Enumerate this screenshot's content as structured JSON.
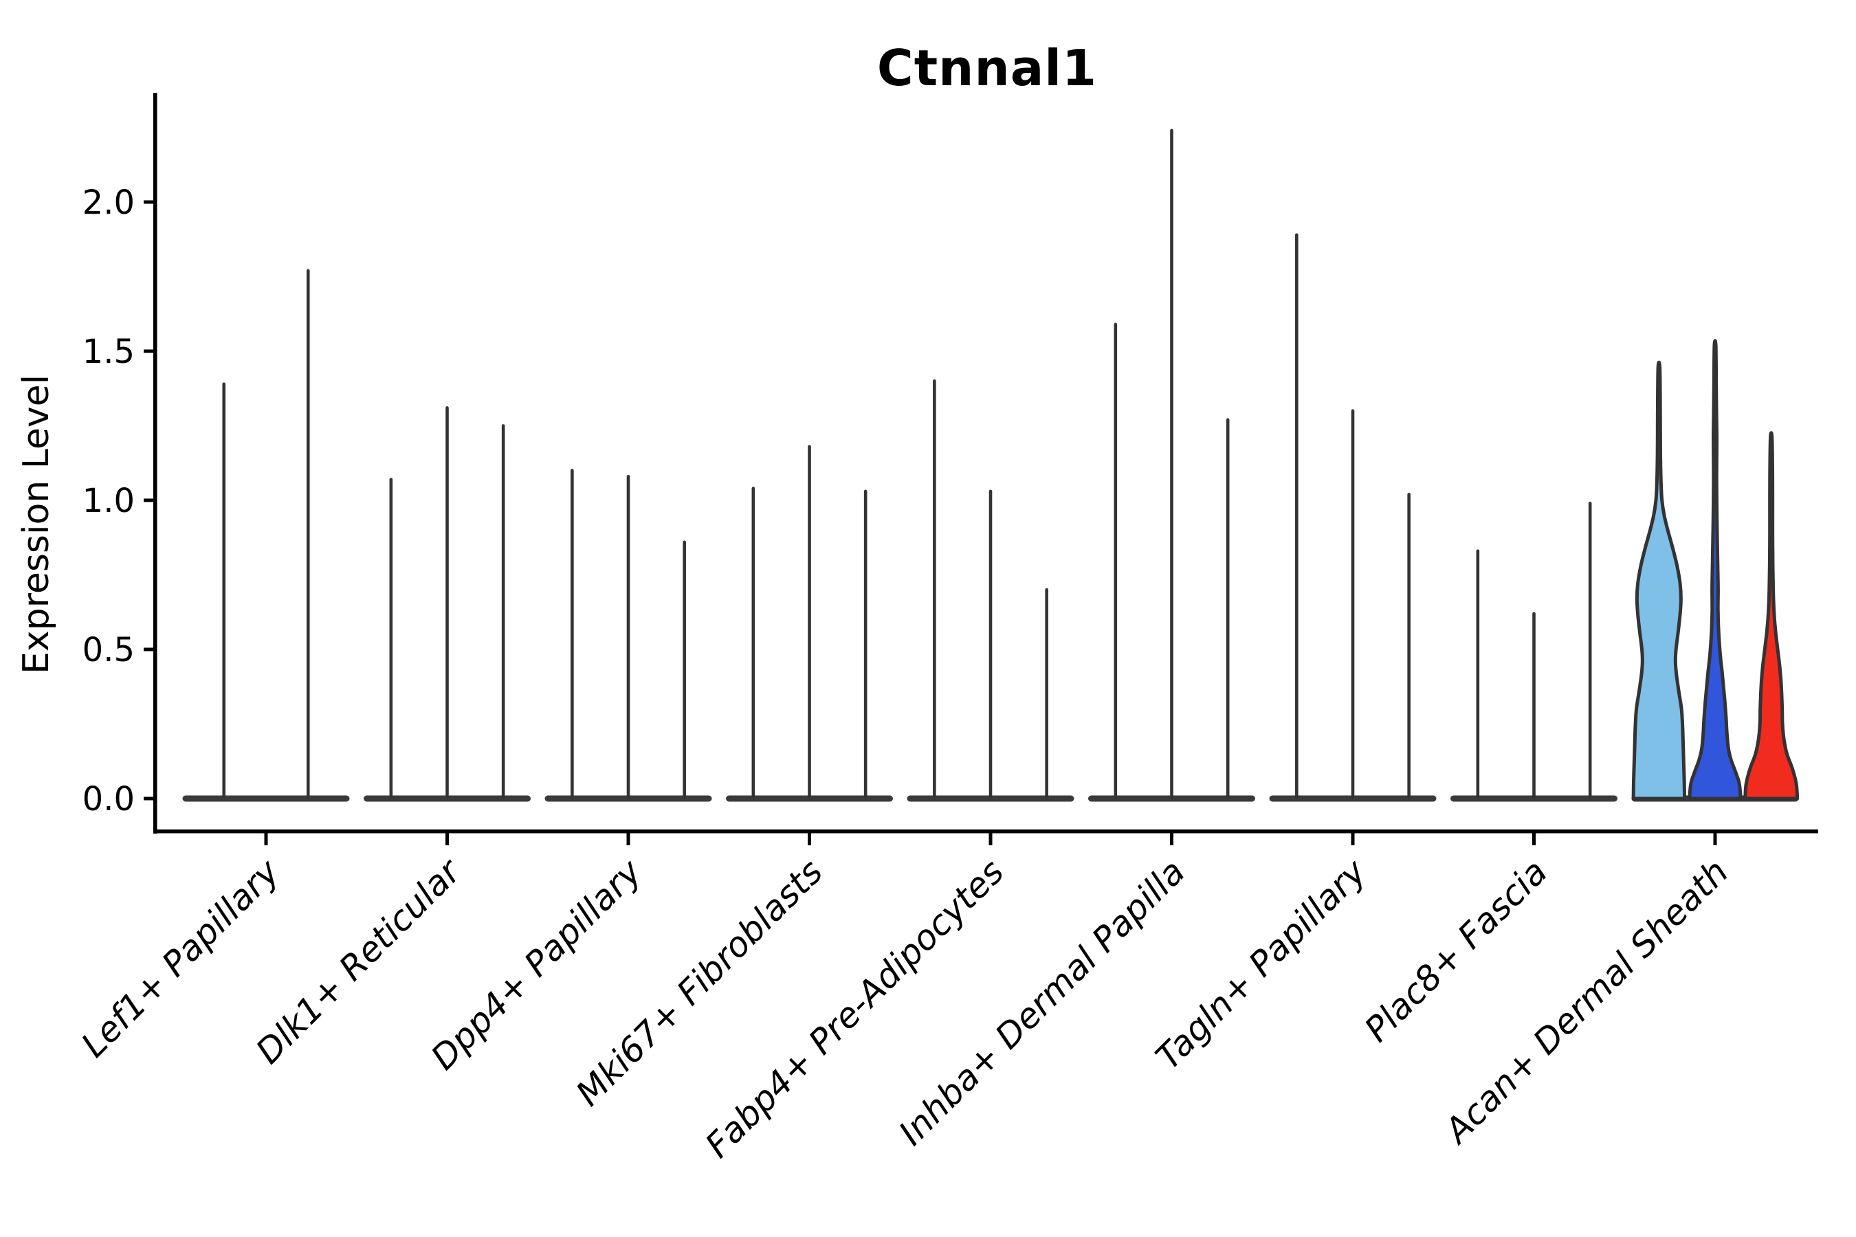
{
  "chart_data": {
    "type": "violin",
    "title": "Ctnnal1",
    "ylabel": "Expression Level",
    "xlabel": "",
    "grid": false,
    "legend_position": "none",
    "ylim": [
      -0.11,
      2.37
    ],
    "ytick_values": [
      0,
      0.5,
      1.0,
      1.5,
      2.0
    ],
    "ytick_labels": [
      "0.0",
      "0.5",
      "1.0",
      "1.5",
      "2.0"
    ],
    "categories": [
      "Lef1+ Papillary",
      "Dlk1+ Reticular",
      "Dpp4+ Papillary",
      "Mki67+ Fibroblasts",
      "Fabp4+ Pre-Adipocytes",
      "Inhba+ Dermal Papilla",
      "Tagln+ Papillary",
      "Plac8+ Fascia",
      "Acan+ Dermal Sheath"
    ],
    "colors": {
      "spike": "#333333",
      "base_bar": "#3a3a3a",
      "violin_outline": "#333333",
      "axis": "#000000",
      "violin_fills": [
        "#7EC0E8",
        "#3156DC",
        "#F22B1F"
      ]
    },
    "groups": [
      {
        "category": "Lef1+ Papillary",
        "violins": [
          {
            "type": "spike",
            "max": 1.39
          },
          {
            "type": "spike",
            "max": 1.77
          }
        ]
      },
      {
        "category": "Dlk1+ Reticular",
        "violins": [
          {
            "type": "spike",
            "max": 1.07
          },
          {
            "type": "spike",
            "max": 1.31
          },
          {
            "type": "spike",
            "max": 1.25
          }
        ]
      },
      {
        "category": "Dpp4+ Papillary",
        "violins": [
          {
            "type": "spike",
            "max": 1.1
          },
          {
            "type": "spike",
            "max": 1.08
          },
          {
            "type": "spike",
            "max": 0.86
          }
        ]
      },
      {
        "category": "Mki67+ Fibroblasts",
        "violins": [
          {
            "type": "spike",
            "max": 1.04
          },
          {
            "type": "spike",
            "max": 1.18
          },
          {
            "type": "spike",
            "max": 1.03
          }
        ]
      },
      {
        "category": "Fabp4+ Pre-Adipocytes",
        "violins": [
          {
            "type": "spike",
            "max": 1.4
          },
          {
            "type": "spike",
            "max": 1.03
          },
          {
            "type": "spike",
            "max": 0.7
          }
        ]
      },
      {
        "category": "Inhba+ Dermal Papilla",
        "violins": [
          {
            "type": "spike",
            "max": 1.59
          },
          {
            "type": "spike",
            "max": 2.24
          },
          {
            "type": "spike",
            "max": 1.27
          }
        ]
      },
      {
        "category": "Tagln+ Papillary",
        "violins": [
          {
            "type": "spike",
            "max": 1.89
          },
          {
            "type": "spike",
            "max": 1.3
          },
          {
            "type": "spike",
            "max": 1.02
          }
        ]
      },
      {
        "category": "Plac8+ Fascia",
        "violins": [
          {
            "type": "spike",
            "max": 0.83
          },
          {
            "type": "spike",
            "max": 0.62
          },
          {
            "type": "spike",
            "max": 0.99
          }
        ]
      },
      {
        "category": "Acan+ Dermal Sheath",
        "violins": [
          {
            "type": "violin",
            "max": 1.45,
            "fill": "#7EC0E8",
            "profile": [
              [
                0.0,
                0.93
              ],
              [
                0.06,
                0.92
              ],
              [
                0.12,
                0.9
              ],
              [
                0.18,
                0.88
              ],
              [
                0.24,
                0.86
              ],
              [
                0.3,
                0.82
              ],
              [
                0.36,
                0.72
              ],
              [
                0.42,
                0.63
              ],
              [
                0.46,
                0.6
              ],
              [
                0.5,
                0.62
              ],
              [
                0.56,
                0.7
              ],
              [
                0.62,
                0.77
              ],
              [
                0.67,
                0.8
              ],
              [
                0.72,
                0.77
              ],
              [
                0.78,
                0.66
              ],
              [
                0.84,
                0.5
              ],
              [
                0.9,
                0.32
              ],
              [
                0.95,
                0.19
              ],
              [
                1.0,
                0.11
              ],
              [
                1.06,
                0.075
              ],
              [
                1.15,
                0.055
              ],
              [
                1.25,
                0.05
              ],
              [
                1.35,
                0.045
              ],
              [
                1.45,
                0.028
              ]
            ]
          },
          {
            "type": "violin",
            "max": 1.52,
            "fill": "#3156DC",
            "profile": [
              [
                0.0,
                0.93
              ],
              [
                0.05,
                0.88
              ],
              [
                0.09,
                0.74
              ],
              [
                0.13,
                0.58
              ],
              [
                0.17,
                0.48
              ],
              [
                0.22,
                0.43
              ],
              [
                0.27,
                0.4
              ],
              [
                0.32,
                0.36
              ],
              [
                0.37,
                0.31
              ],
              [
                0.42,
                0.26
              ],
              [
                0.47,
                0.2
              ],
              [
                0.52,
                0.155
              ],
              [
                0.58,
                0.12
              ],
              [
                0.64,
                0.105
              ],
              [
                0.7,
                0.11
              ],
              [
                0.76,
                0.1
              ],
              [
                0.84,
                0.085
              ],
              [
                0.92,
                0.07
              ],
              [
                1.0,
                0.06
              ],
              [
                1.08,
                0.055
              ],
              [
                1.16,
                0.06
              ],
              [
                1.22,
                0.062
              ],
              [
                1.3,
                0.05
              ],
              [
                1.4,
                0.04
              ],
              [
                1.52,
                0.026
              ]
            ]
          },
          {
            "type": "violin",
            "max": 1.21,
            "fill": "#F22B1F",
            "profile": [
              [
                0.0,
                0.95
              ],
              [
                0.05,
                0.91
              ],
              [
                0.1,
                0.77
              ],
              [
                0.15,
                0.57
              ],
              [
                0.2,
                0.46
              ],
              [
                0.25,
                0.41
              ],
              [
                0.3,
                0.4
              ],
              [
                0.35,
                0.38
              ],
              [
                0.4,
                0.35
              ],
              [
                0.45,
                0.3
              ],
              [
                0.5,
                0.235
              ],
              [
                0.55,
                0.17
              ],
              [
                0.6,
                0.12
              ],
              [
                0.65,
                0.09
              ],
              [
                0.7,
                0.072
              ],
              [
                0.78,
                0.058
              ],
              [
                0.88,
                0.05
              ],
              [
                0.98,
                0.05
              ],
              [
                1.08,
                0.048
              ],
              [
                1.21,
                0.028
              ]
            ]
          }
        ]
      }
    ]
  }
}
